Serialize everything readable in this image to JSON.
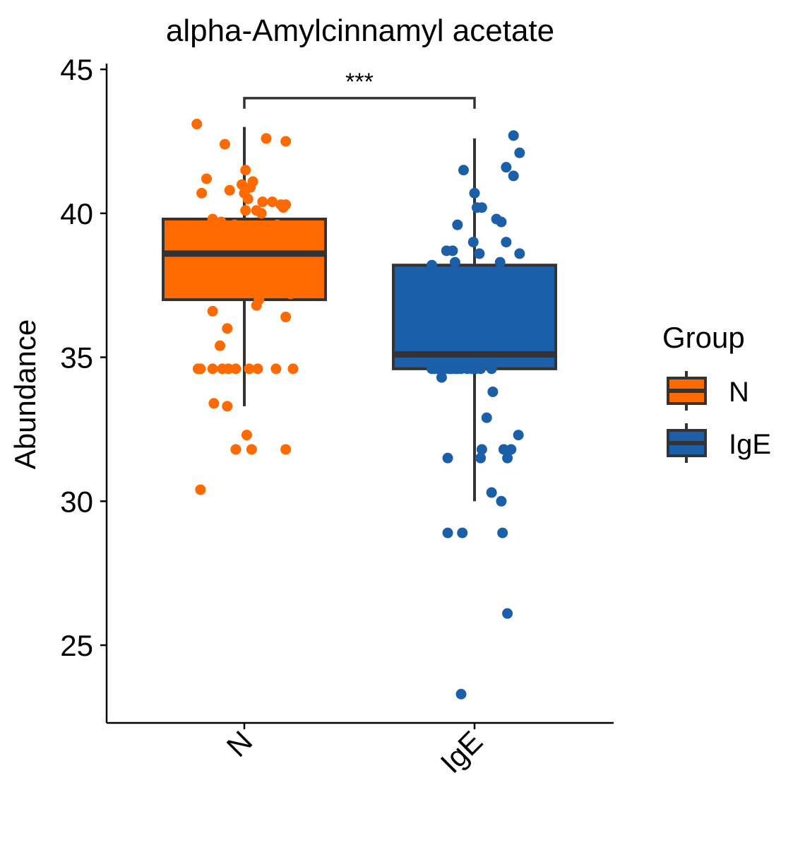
{
  "chart_data": {
    "type": "box",
    "title": "alpha-Amylcinnamyl acetate",
    "xlabel": "",
    "ylabel": "Abundance",
    "ylim": [
      22.3,
      45.2
    ],
    "yticks": [
      25,
      30,
      35,
      40,
      45
    ],
    "categories": [
      "N",
      "IgE"
    ],
    "legend": {
      "title": "Group",
      "position": "right",
      "entries": [
        "N",
        "IgE"
      ]
    },
    "significance": {
      "label": "***",
      "between": [
        "N",
        "IgE"
      ],
      "y": 44
    },
    "series": [
      {
        "name": "N",
        "color": "#FF6A00",
        "box": {
          "min": 33.3,
          "q1": 37.0,
          "median": 38.6,
          "q3": 39.8,
          "max": 43.0
        },
        "points": [
          [
            -0.39,
            43.1
          ],
          [
            -0.16,
            42.4
          ],
          [
            0.18,
            42.6
          ],
          [
            0.34,
            42.5
          ],
          [
            -0.31,
            41.2
          ],
          [
            0.01,
            41.5
          ],
          [
            0.07,
            41.1
          ],
          [
            -0.35,
            40.7
          ],
          [
            -0.12,
            40.8
          ],
          [
            -0.02,
            41.0
          ],
          [
            0.0,
            40.7
          ],
          [
            0.05,
            40.9
          ],
          [
            0.03,
            40.5
          ],
          [
            0.15,
            40.4
          ],
          [
            0.23,
            40.4
          ],
          [
            0.3,
            40.3
          ],
          [
            0.32,
            40.2
          ],
          [
            0.34,
            40.3
          ],
          [
            0.1,
            40.1
          ],
          [
            0.01,
            40.1
          ],
          [
            0.14,
            40.0
          ],
          [
            -0.26,
            39.8
          ],
          [
            -0.19,
            39.7
          ],
          [
            -0.08,
            39.6
          ],
          [
            -0.23,
            39.5
          ],
          [
            0.27,
            39.6
          ],
          [
            -0.37,
            39.4
          ],
          [
            -0.3,
            39.2
          ],
          [
            0.04,
            39.3
          ],
          [
            0.2,
            39.1
          ],
          [
            -0.34,
            38.9
          ],
          [
            -0.02,
            38.7
          ],
          [
            0.03,
            38.7
          ],
          [
            -0.25,
            38.6
          ],
          [
            -0.29,
            38.6
          ],
          [
            0.18,
            38.6
          ],
          [
            0.36,
            38.6
          ],
          [
            0.28,
            38.4
          ],
          [
            0.33,
            38.2
          ],
          [
            0.37,
            38.0
          ],
          [
            -0.36,
            37.8
          ],
          [
            0.13,
            37.9
          ],
          [
            0.35,
            37.5
          ],
          [
            0.38,
            37.2
          ],
          [
            0.12,
            37.0
          ],
          [
            0.1,
            36.8
          ],
          [
            -0.26,
            36.6
          ],
          [
            0.34,
            36.4
          ],
          [
            -0.14,
            36.0
          ],
          [
            -0.2,
            35.4
          ],
          [
            -0.38,
            34.6
          ],
          [
            -0.36,
            34.6
          ],
          [
            -0.26,
            34.6
          ],
          [
            -0.18,
            34.6
          ],
          [
            -0.13,
            34.6
          ],
          [
            -0.07,
            34.6
          ],
          [
            0.04,
            34.6
          ],
          [
            0.11,
            34.6
          ],
          [
            0.26,
            34.6
          ],
          [
            0.4,
            34.6
          ],
          [
            -0.25,
            33.4
          ],
          [
            -0.14,
            33.3
          ],
          [
            0.02,
            32.3
          ],
          [
            -0.07,
            31.8
          ],
          [
            0.06,
            31.8
          ],
          [
            0.34,
            31.8
          ],
          [
            -0.36,
            30.4
          ]
        ]
      },
      {
        "name": "IgE",
        "color": "#1A5FA8",
        "box": {
          "min": 30.0,
          "q1": 34.6,
          "median": 35.1,
          "q3": 38.2,
          "max": 42.6
        },
        "points": [
          [
            0.32,
            42.7
          ],
          [
            0.37,
            42.1
          ],
          [
            -0.09,
            41.5
          ],
          [
            0.26,
            41.6
          ],
          [
            0.32,
            41.3
          ],
          [
            0.0,
            40.7
          ],
          [
            0.02,
            40.2
          ],
          [
            0.06,
            40.2
          ],
          [
            0.18,
            39.8
          ],
          [
            0.22,
            39.7
          ],
          [
            -0.14,
            39.6
          ],
          [
            0.26,
            39.0
          ],
          [
            -0.01,
            39.0
          ],
          [
            -0.23,
            38.7
          ],
          [
            -0.18,
            38.7
          ],
          [
            0.04,
            38.6
          ],
          [
            0.37,
            38.6
          ],
          [
            -0.16,
            38.3
          ],
          [
            0.21,
            38.3
          ],
          [
            -0.35,
            38.2
          ],
          [
            0.38,
            37.7
          ],
          [
            0.36,
            37.2
          ],
          [
            0.4,
            37.0
          ],
          [
            -0.37,
            37.0
          ],
          [
            -0.33,
            35.6
          ],
          [
            0.32,
            35.1
          ],
          [
            -0.35,
            34.6
          ],
          [
            -0.33,
            34.6
          ],
          [
            -0.3,
            34.6
          ],
          [
            -0.27,
            34.6
          ],
          [
            -0.24,
            34.6
          ],
          [
            -0.21,
            34.6
          ],
          [
            -0.19,
            34.6
          ],
          [
            -0.16,
            34.6
          ],
          [
            -0.14,
            34.6
          ],
          [
            -0.11,
            34.6
          ],
          [
            -0.06,
            34.6
          ],
          [
            -0.02,
            34.6
          ],
          [
            0.01,
            34.6
          ],
          [
            0.05,
            34.6
          ],
          [
            0.14,
            34.6
          ],
          [
            -0.27,
            34.3
          ],
          [
            0.15,
            33.8
          ],
          [
            0.1,
            32.9
          ],
          [
            0.36,
            32.3
          ],
          [
            0.06,
            31.8
          ],
          [
            0.24,
            31.8
          ],
          [
            0.3,
            31.8
          ],
          [
            -0.22,
            31.5
          ],
          [
            0.05,
            31.5
          ],
          [
            0.27,
            31.5
          ],
          [
            0.14,
            30.3
          ],
          [
            0.22,
            30.0
          ],
          [
            -0.22,
            28.9
          ],
          [
            -0.1,
            28.9
          ],
          [
            0.23,
            28.9
          ],
          [
            0.27,
            26.1
          ],
          [
            -0.11,
            23.3
          ]
        ]
      }
    ]
  }
}
